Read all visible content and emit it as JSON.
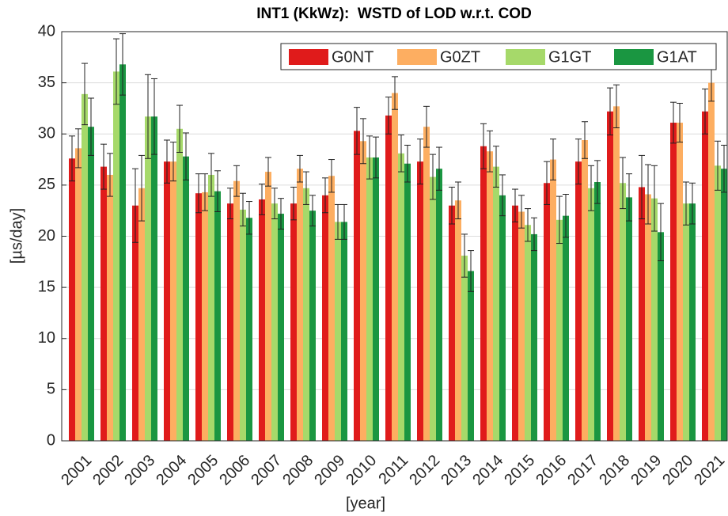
{
  "chart_data": {
    "type": "bar",
    "title": "INT1 (KkWz):  WSTD of LOD w.r.t. COD",
    "x_label": "[year]",
    "y_label": "[µs/day]",
    "categories": [
      "2001",
      "2002",
      "2003",
      "2004",
      "2005",
      "2006",
      "2007",
      "2008",
      "2009",
      "2010",
      "2011",
      "2012",
      "2013",
      "2014",
      "2015",
      "2016",
      "2017",
      "2018",
      "2019",
      "2020",
      "2021"
    ],
    "series": [
      {
        "name": "G0NT",
        "color": "#e01b1b",
        "values": [
          27.6,
          26.8,
          23.0,
          27.3,
          24.2,
          23.2,
          23.6,
          23.2,
          24.0,
          30.3,
          31.8,
          27.3,
          23.0,
          28.8,
          23.0,
          25.2,
          27.3,
          32.2,
          24.8,
          31.1,
          32.2
        ],
        "errors": [
          2.2,
          2.2,
          3.6,
          2.1,
          1.9,
          1.5,
          1.5,
          1.6,
          1.7,
          2.3,
          1.8,
          2.2,
          1.8,
          2.2,
          1.6,
          2.1,
          2.2,
          2.3,
          3.1,
          2.0,
          2.2
        ]
      },
      {
        "name": "G0ZT",
        "color": "#fdae61",
        "values": [
          28.6,
          26.0,
          24.7,
          27.3,
          24.3,
          25.4,
          26.3,
          26.6,
          25.9,
          29.3,
          34.0,
          30.7,
          23.5,
          28.3,
          22.4,
          27.5,
          29.4,
          32.7,
          24.1,
          31.1,
          35.0
        ],
        "errors": [
          1.9,
          2.1,
          3.2,
          1.9,
          1.8,
          1.5,
          1.4,
          1.3,
          1.6,
          2.2,
          1.6,
          2.0,
          1.8,
          2.0,
          1.6,
          2.0,
          1.8,
          2.1,
          2.9,
          1.9,
          1.8
        ]
      },
      {
        "name": "G1GT",
        "color": "#a6d96a",
        "values": [
          33.9,
          36.1,
          31.7,
          30.5,
          26.0,
          22.6,
          23.2,
          24.7,
          21.4,
          27.7,
          28.1,
          25.8,
          18.1,
          26.8,
          21.1,
          21.6,
          24.7,
          25.2,
          23.7,
          23.2,
          26.9
        ],
        "errors": [
          3.0,
          3.2,
          4.1,
          2.3,
          2.1,
          1.6,
          1.5,
          1.6,
          1.7,
          2.1,
          1.8,
          2.2,
          2.1,
          2.0,
          1.6,
          2.3,
          2.2,
          2.5,
          3.2,
          2.1,
          2.4
        ]
      },
      {
        "name": "G1AT",
        "color": "#1a9641",
        "values": [
          30.7,
          36.8,
          31.7,
          27.8,
          24.4,
          21.8,
          22.2,
          22.5,
          21.4,
          27.7,
          27.1,
          26.6,
          16.6,
          24.0,
          20.2,
          22.0,
          25.3,
          23.8,
          20.4,
          23.2,
          26.6
        ],
        "errors": [
          2.8,
          3.0,
          3.7,
          2.3,
          2.0,
          1.6,
          1.5,
          1.5,
          1.7,
          2.0,
          1.8,
          2.1,
          2.0,
          2.0,
          1.6,
          2.1,
          2.1,
          2.3,
          2.8,
          2.0,
          2.3
        ]
      }
    ],
    "ylim": [
      0,
      40
    ],
    "yticks": [
      0,
      5,
      10,
      15,
      20,
      25,
      30,
      35,
      40
    ],
    "grid": true,
    "legend": "upper-right"
  }
}
